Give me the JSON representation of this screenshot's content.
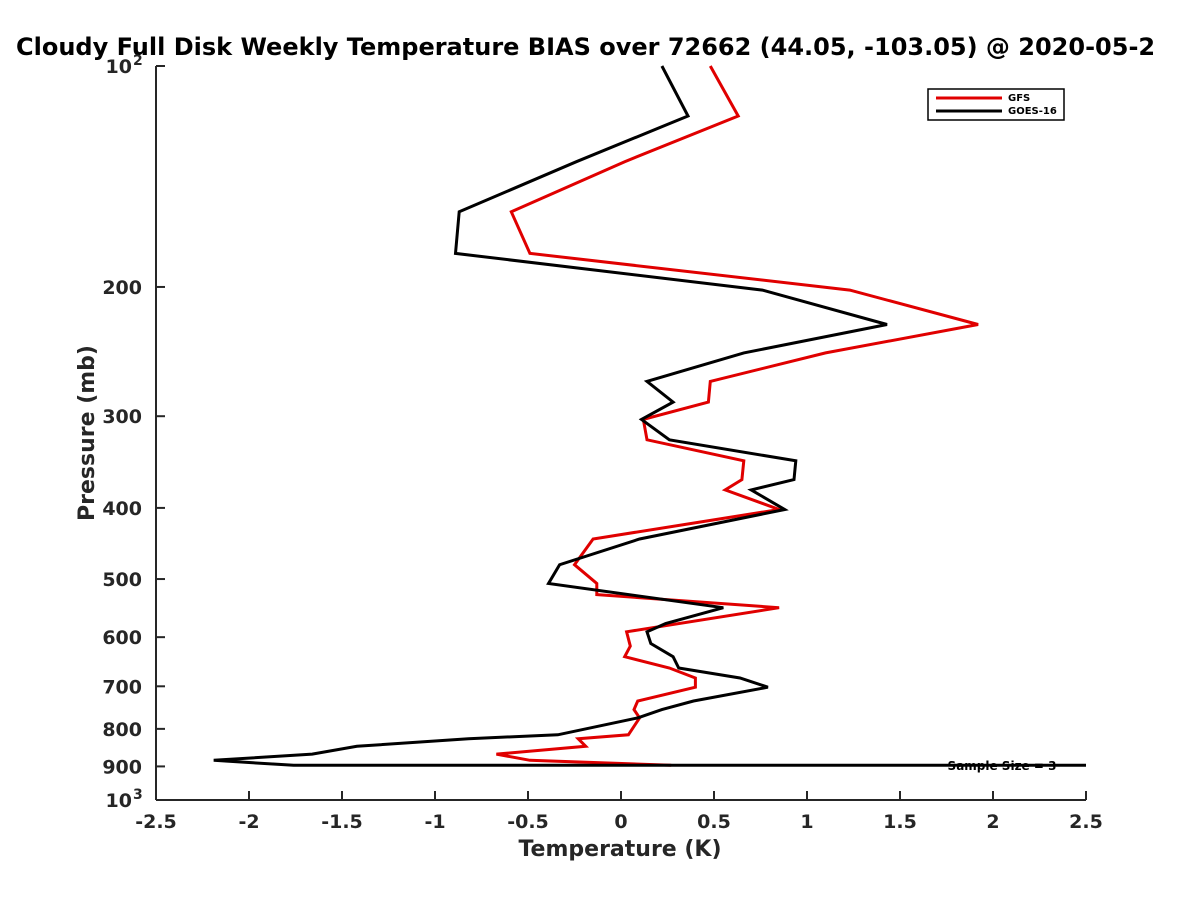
{
  "chart_data": {
    "type": "line",
    "title": "Cloudy Full Disk Weekly Temperature BIAS over 72662 (44.05, -103.05) @ 2020-05-2",
    "xlabel": "Temperature (K)",
    "ylabel": "Pressure (mb)",
    "xlim": [
      -2.5,
      2.5
    ],
    "ylim": [
      100,
      1000
    ],
    "yscale": "log",
    "y_reversed": true,
    "grid": false,
    "legend_position": "top-right",
    "x_ticks": [
      "-2.5",
      "-2",
      "-1.5",
      "-1",
      "-0.5",
      "0",
      "0.5",
      "1",
      "1.5",
      "2",
      "2.5"
    ],
    "y_ticks": [
      {
        "value": 100,
        "base": "10",
        "exp": "2"
      },
      {
        "value": 200,
        "label": "200"
      },
      {
        "value": 300,
        "label": "300"
      },
      {
        "value": 400,
        "label": "400"
      },
      {
        "value": 500,
        "label": "500"
      },
      {
        "value": 600,
        "label": "600"
      },
      {
        "value": 700,
        "label": "700"
      },
      {
        "value": 800,
        "label": "800"
      },
      {
        "value": 900,
        "label": "900"
      },
      {
        "value": 1000,
        "base": "10",
        "exp": "3"
      }
    ],
    "annotation": "Sample Size = 3",
    "series": [
      {
        "name": "GFS",
        "color": "#e00000",
        "points": [
          [
            0.48,
            100
          ],
          [
            0.63,
            117
          ],
          [
            0.02,
            135
          ],
          [
            -0.59,
            158
          ],
          [
            -0.49,
            180
          ],
          [
            1.23,
            202
          ],
          [
            1.92,
            225
          ],
          [
            1.1,
            246
          ],
          [
            0.48,
            269
          ],
          [
            0.47,
            287
          ],
          [
            0.12,
            303
          ],
          [
            0.14,
            323
          ],
          [
            0.66,
            345
          ],
          [
            0.65,
            366
          ],
          [
            0.56,
            378
          ],
          [
            0.85,
            402
          ],
          [
            -0.15,
            441
          ],
          [
            -0.25,
            478
          ],
          [
            -0.13,
            507
          ],
          [
            -0.13,
            525
          ],
          [
            0.85,
            547
          ],
          [
            0.03,
            590
          ],
          [
            0.05,
            617
          ],
          [
            0.02,
            638
          ],
          [
            0.26,
            661
          ],
          [
            0.4,
            682
          ],
          [
            0.4,
            702
          ],
          [
            0.09,
            733
          ],
          [
            0.07,
            753
          ],
          [
            0.1,
            773
          ],
          [
            0.04,
            815
          ],
          [
            -0.23,
            825
          ],
          [
            -0.19,
            845
          ],
          [
            -0.67,
            866
          ],
          [
            -0.49,
            883
          ],
          [
            0.27,
            897
          ]
        ]
      },
      {
        "name": "GOES-16",
        "color": "#000000",
        "points": [
          [
            0.22,
            100
          ],
          [
            0.36,
            117
          ],
          [
            -0.24,
            135
          ],
          [
            -0.87,
            158
          ],
          [
            -0.89,
            180
          ],
          [
            0.76,
            202
          ],
          [
            1.43,
            225
          ],
          [
            0.66,
            246
          ],
          [
            0.14,
            269
          ],
          [
            0.28,
            287
          ],
          [
            0.11,
            303
          ],
          [
            0.26,
            323
          ],
          [
            0.94,
            345
          ],
          [
            0.93,
            366
          ],
          [
            0.7,
            378
          ],
          [
            0.88,
            402
          ],
          [
            0.1,
            441
          ],
          [
            -0.33,
            478
          ],
          [
            -0.39,
            507
          ],
          [
            0.55,
            547
          ],
          [
            0.24,
            575
          ],
          [
            0.14,
            590
          ],
          [
            0.16,
            612
          ],
          [
            0.28,
            638
          ],
          [
            0.31,
            661
          ],
          [
            0.64,
            682
          ],
          [
            0.79,
            702
          ],
          [
            0.39,
            733
          ],
          [
            0.22,
            753
          ],
          [
            0.09,
            773
          ],
          [
            -0.34,
            815
          ],
          [
            -0.82,
            825
          ],
          [
            -1.42,
            845
          ],
          [
            -1.66,
            866
          ],
          [
            -2.19,
            883
          ],
          [
            -1.76,
            897
          ],
          [
            2.5,
            897
          ]
        ]
      }
    ]
  }
}
